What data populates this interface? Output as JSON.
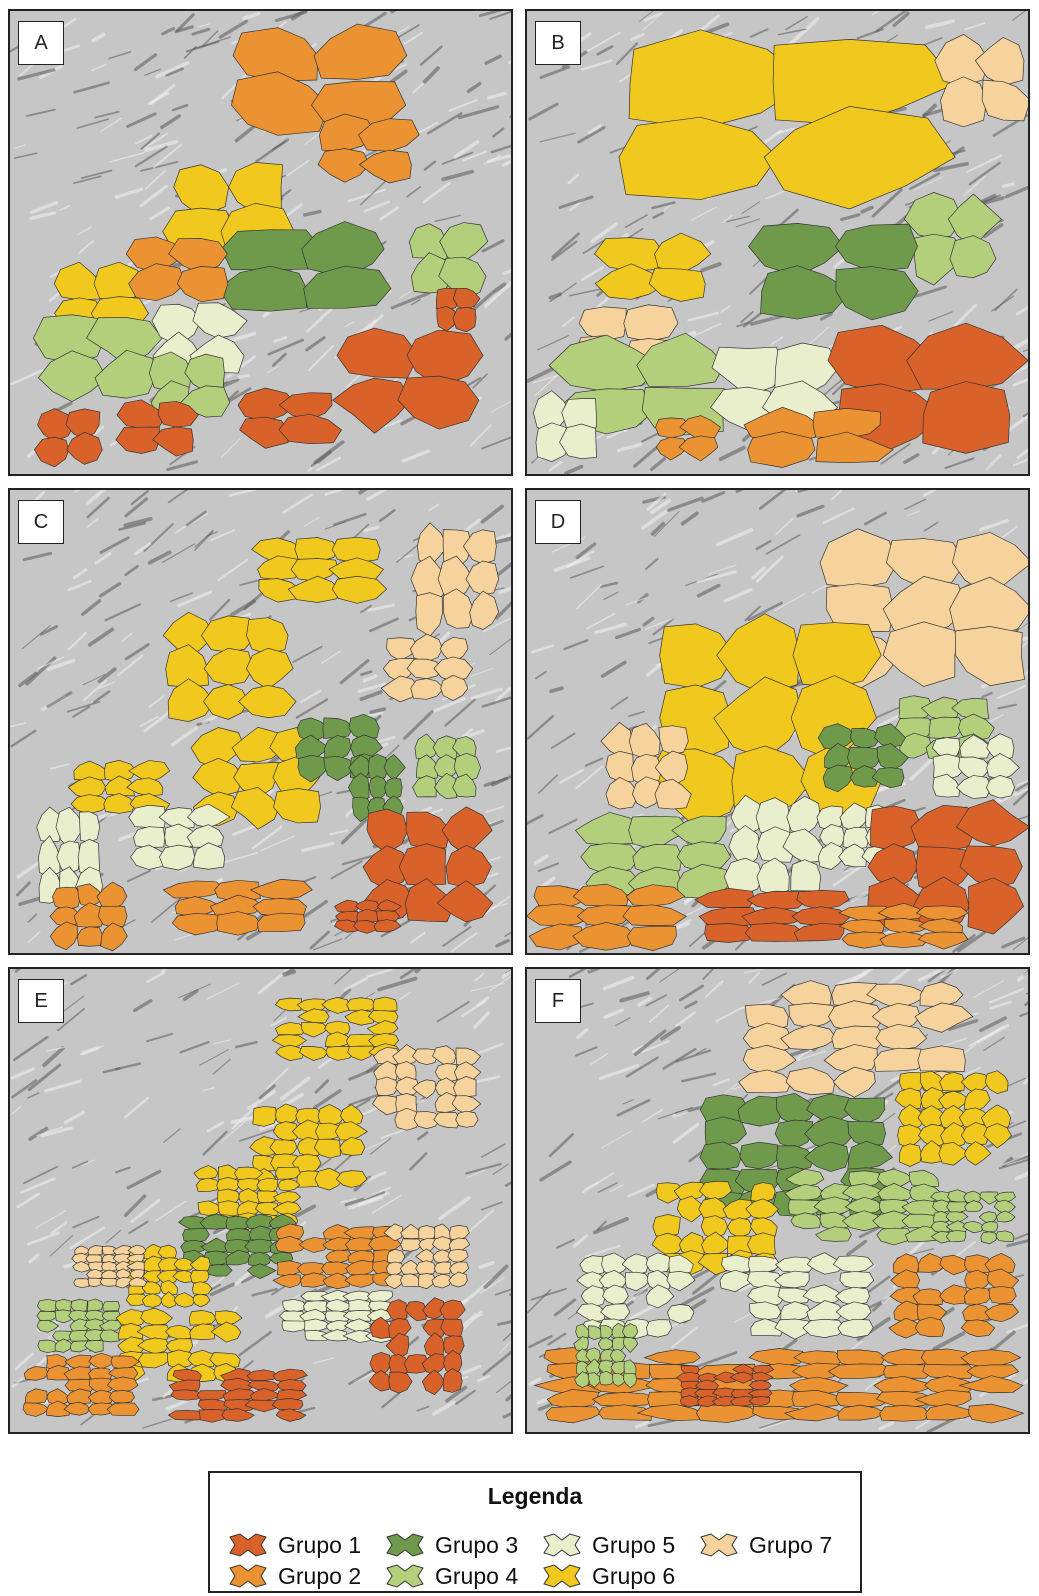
{
  "panels": [
    {
      "label": "A",
      "groups": [
        1,
        2,
        3,
        4,
        5,
        6
      ]
    },
    {
      "label": "B",
      "groups": [
        1,
        2,
        3,
        4,
        5,
        6,
        7
      ]
    },
    {
      "label": "C",
      "groups": [
        1,
        2,
        3,
        4,
        5,
        6,
        7
      ]
    },
    {
      "label": "D",
      "groups": [
        1,
        2,
        3,
        4,
        5,
        6,
        7
      ]
    },
    {
      "label": "E",
      "groups": [
        1,
        2,
        3,
        4,
        5,
        6,
        7
      ]
    },
    {
      "label": "F",
      "groups": [
        1,
        2,
        3,
        4,
        5,
        6,
        7
      ]
    }
  ],
  "legend": {
    "title": "Legenda",
    "items": [
      {
        "label": "Grupo 1",
        "color": "#d9622b"
      },
      {
        "label": "Grupo 2",
        "color": "#eb9333"
      },
      {
        "label": "Grupo 3",
        "color": "#6f9a4c"
      },
      {
        "label": "Grupo 4",
        "color": "#b3cf7c"
      },
      {
        "label": "Grupo 5",
        "color": "#e9efcd"
      },
      {
        "label": "Grupo 6",
        "color": "#f0c81e"
      },
      {
        "label": "Grupo 7",
        "color": "#f6d29c"
      }
    ]
  }
}
